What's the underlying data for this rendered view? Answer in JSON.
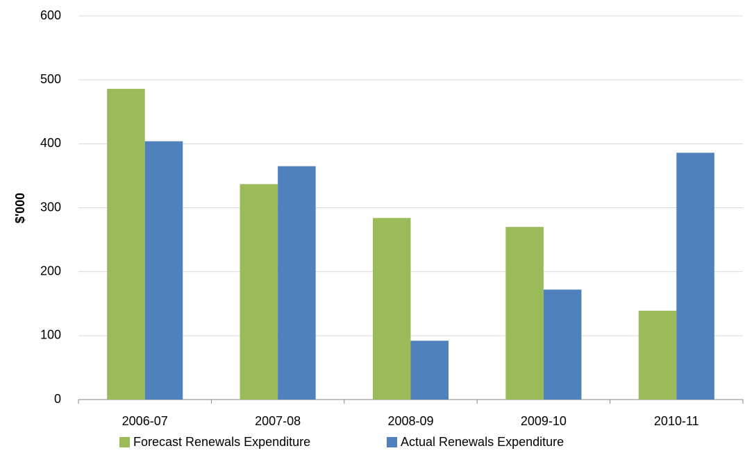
{
  "chart_data": {
    "type": "bar",
    "y_label": "$'000",
    "categories": [
      "2006-07",
      "2007-08",
      "2008-09",
      "2009-10",
      "2010-11"
    ],
    "series": [
      {
        "name": "Forecast Renewals Expenditure",
        "color": "#9bbb59",
        "values": [
          486,
          337,
          284,
          270,
          139
        ]
      },
      {
        "name": "Actual Renewals Expenditure",
        "color": "#4f81bd",
        "values": [
          404,
          365,
          92,
          172,
          386
        ]
      }
    ],
    "ylim": [
      0,
      600
    ],
    "yticks": [
      0,
      100,
      200,
      300,
      400,
      500,
      600
    ],
    "grid": true,
    "legend": "bottom"
  }
}
